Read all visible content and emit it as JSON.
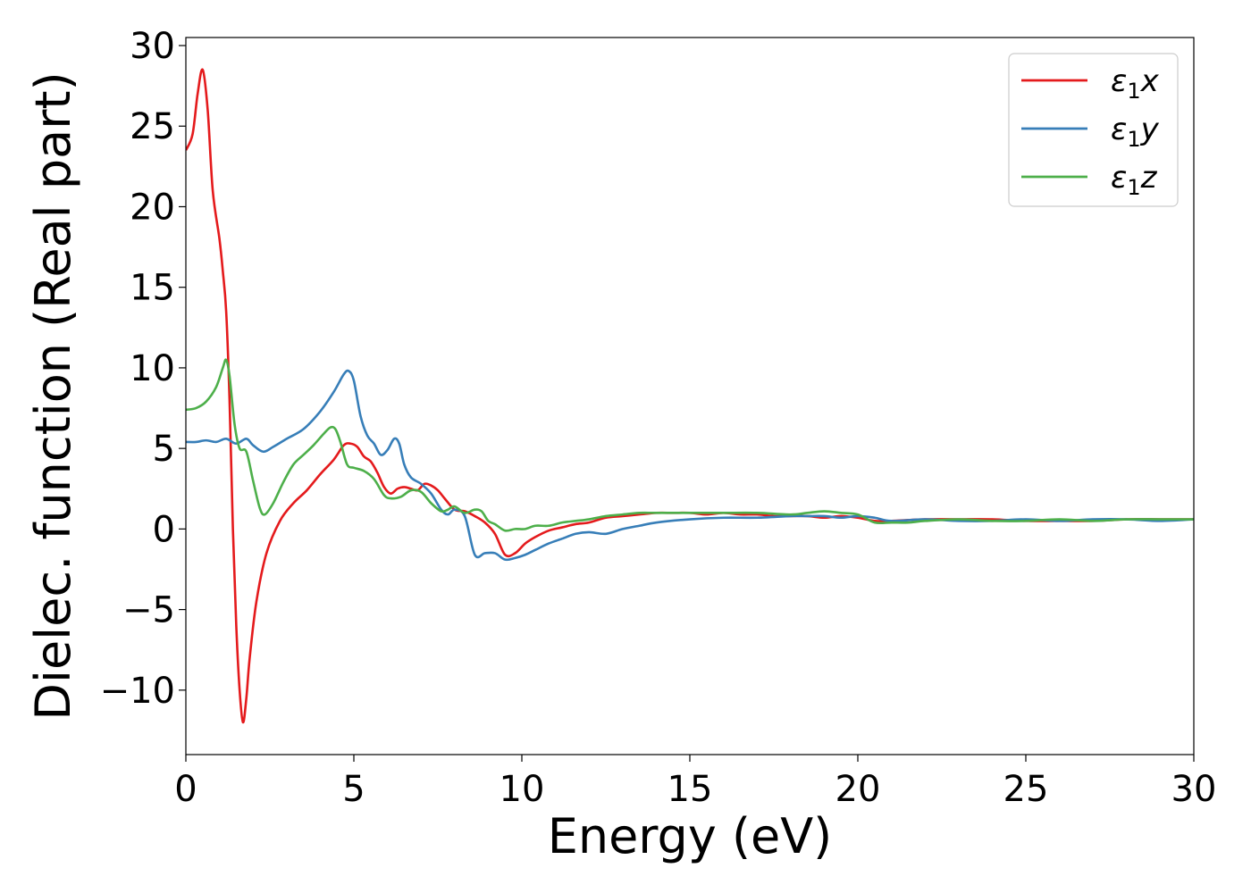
{
  "chart_data": {
    "type": "line",
    "title": "",
    "xlabel": "Energy (eV)",
    "ylabel": "Dielec. function (Real part)",
    "xlim": [
      0,
      30
    ],
    "ylim": [
      -14,
      30.5
    ],
    "xticks": [
      0,
      5,
      10,
      15,
      20,
      25,
      30
    ],
    "xtick_labels": [
      "0",
      "5",
      "10",
      "15",
      "20",
      "25",
      "30"
    ],
    "yticks": [
      -10,
      -5,
      0,
      5,
      10,
      15,
      20,
      25,
      30
    ],
    "ytick_labels": [
      "−10",
      "−5",
      "0",
      "5",
      "10",
      "15",
      "20",
      "25",
      "30"
    ],
    "grid": false,
    "legend_position": "top-right",
    "series": [
      {
        "name": "ε₁x",
        "legend": {
          "base": "ε",
          "sub": "1",
          "var": "x"
        },
        "color": "#e41a1c",
        "x": [
          0,
          0.2,
          0.35,
          0.5,
          0.65,
          0.8,
          1.0,
          1.1,
          1.2,
          1.3,
          1.4,
          1.5,
          1.6,
          1.7,
          1.8,
          1.9,
          2.1,
          2.4,
          2.8,
          3.2,
          3.6,
          4.0,
          4.4,
          4.7,
          4.9,
          5.1,
          5.3,
          5.5,
          5.7,
          5.9,
          6.1,
          6.3,
          6.5,
          6.7,
          6.9,
          7.1,
          7.3,
          7.5,
          7.7,
          8.0,
          8.3,
          8.6,
          8.9,
          9.2,
          9.5,
          9.8,
          10.1,
          10.4,
          10.8,
          11.2,
          11.6,
          12.0,
          12.5,
          13.0,
          13.5,
          14.0,
          14.5,
          15.0,
          15.5,
          16.0,
          16.5,
          17.0,
          17.5,
          18.0,
          18.5,
          19.0,
          19.5,
          20.0,
          20.5,
          21.0,
          22.0,
          23.0,
          24.0,
          25.0,
          26.0,
          27.0,
          28.0,
          29.0,
          30.0
        ],
        "y": [
          23.5,
          24.5,
          27.0,
          28.5,
          26.0,
          21.0,
          18.0,
          16.0,
          13.5,
          8.0,
          0.0,
          -6.0,
          -10.0,
          -12.0,
          -10.5,
          -8.0,
          -4.5,
          -1.5,
          0.5,
          1.6,
          2.4,
          3.4,
          4.3,
          5.2,
          5.3,
          5.1,
          4.5,
          4.2,
          3.5,
          2.6,
          2.2,
          2.5,
          2.6,
          2.5,
          2.4,
          2.8,
          2.7,
          2.4,
          1.9,
          1.2,
          1.1,
          0.8,
          0.4,
          -0.3,
          -1.6,
          -1.5,
          -0.9,
          -0.5,
          -0.1,
          0.1,
          0.3,
          0.4,
          0.7,
          0.8,
          0.9,
          1.0,
          1.0,
          1.0,
          0.9,
          1.0,
          0.9,
          0.9,
          0.8,
          0.8,
          0.8,
          0.7,
          0.8,
          0.7,
          0.5,
          0.5,
          0.6,
          0.6,
          0.6,
          0.5,
          0.5,
          0.5,
          0.6,
          0.6,
          0.6
        ]
      },
      {
        "name": "ε₁y",
        "legend": {
          "base": "ε",
          "sub": "1",
          "var": "y"
        },
        "color": "#377eb8",
        "x": [
          0,
          0.3,
          0.6,
          0.9,
          1.2,
          1.5,
          1.8,
          2.0,
          2.3,
          2.6,
          3.0,
          3.5,
          4.0,
          4.4,
          4.7,
          4.85,
          5.0,
          5.2,
          5.4,
          5.6,
          5.8,
          6.0,
          6.2,
          6.35,
          6.5,
          6.7,
          7.0,
          7.3,
          7.6,
          7.8,
          8.0,
          8.3,
          8.6,
          8.9,
          9.2,
          9.5,
          9.8,
          10.1,
          10.4,
          10.8,
          11.2,
          11.6,
          12.0,
          12.5,
          13.0,
          13.5,
          14.0,
          15.0,
          16.0,
          17.0,
          18.0,
          18.5,
          19.0,
          19.5,
          20.0,
          20.5,
          21.0,
          22.0,
          23.0,
          24.0,
          25.0,
          26.0,
          27.0,
          28.0,
          29.0,
          30.0
        ],
        "y": [
          5.4,
          5.4,
          5.5,
          5.4,
          5.6,
          5.3,
          5.6,
          5.2,
          4.8,
          5.1,
          5.6,
          6.2,
          7.3,
          8.5,
          9.6,
          9.8,
          9.2,
          7.0,
          5.8,
          5.3,
          4.6,
          4.9,
          5.6,
          5.3,
          4.0,
          3.2,
          2.8,
          2.2,
          1.2,
          0.9,
          1.2,
          0.8,
          -1.6,
          -1.5,
          -1.5,
          -1.9,
          -1.8,
          -1.6,
          -1.3,
          -0.9,
          -0.6,
          -0.3,
          -0.2,
          -0.3,
          0.0,
          0.2,
          0.4,
          0.6,
          0.7,
          0.7,
          0.8,
          0.8,
          0.8,
          0.7,
          0.8,
          0.7,
          0.5,
          0.6,
          0.5,
          0.5,
          0.6,
          0.5,
          0.6,
          0.6,
          0.5,
          0.6
        ]
      },
      {
        "name": "ε₁z",
        "legend": {
          "base": "ε",
          "sub": "1",
          "var": "z"
        },
        "color": "#4daf4a",
        "x": [
          0,
          0.3,
          0.6,
          0.9,
          1.1,
          1.2,
          1.3,
          1.45,
          1.6,
          1.8,
          2.0,
          2.2,
          2.35,
          2.6,
          2.9,
          3.2,
          3.5,
          3.8,
          4.1,
          4.3,
          4.45,
          4.6,
          4.8,
          5.0,
          5.3,
          5.6,
          5.9,
          6.1,
          6.4,
          6.7,
          7.0,
          7.3,
          7.6,
          7.8,
          8.0,
          8.3,
          8.6,
          8.8,
          9.0,
          9.2,
          9.5,
          9.8,
          10.1,
          10.4,
          10.8,
          11.2,
          11.6,
          12.0,
          12.5,
          13.0,
          13.5,
          14.0,
          15.0,
          16.0,
          17.0,
          18.0,
          18.5,
          19.0,
          19.5,
          20.0,
          20.5,
          21.0,
          21.5,
          22.0,
          23.0,
          24.0,
          25.0,
          26.0,
          27.0,
          28.0,
          29.0,
          30.0
        ],
        "y": [
          7.4,
          7.5,
          7.9,
          8.8,
          10.0,
          10.5,
          9.5,
          6.5,
          5.0,
          4.8,
          3.0,
          1.3,
          0.9,
          1.6,
          2.9,
          4.0,
          4.6,
          5.2,
          5.9,
          6.3,
          6.2,
          5.4,
          4.0,
          3.8,
          3.6,
          3.1,
          2.1,
          1.9,
          2.0,
          2.4,
          2.3,
          1.6,
          1.1,
          1.2,
          1.4,
          1.0,
          1.2,
          1.1,
          0.5,
          0.3,
          -0.1,
          0.0,
          0.0,
          0.2,
          0.2,
          0.4,
          0.5,
          0.6,
          0.8,
          0.9,
          1.0,
          1.0,
          1.0,
          1.0,
          1.0,
          0.9,
          1.0,
          1.1,
          1.0,
          0.9,
          0.4,
          0.4,
          0.4,
          0.5,
          0.6,
          0.5,
          0.5,
          0.6,
          0.5,
          0.6,
          0.6,
          0.6
        ]
      }
    ]
  }
}
